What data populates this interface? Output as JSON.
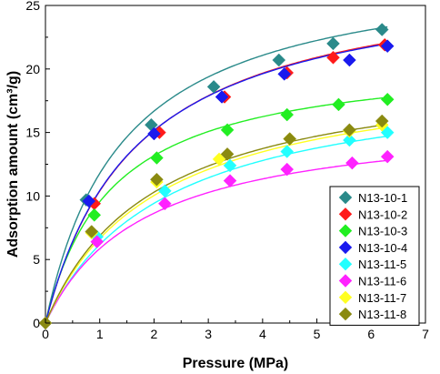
{
  "chart_data": {
    "type": "scatter",
    "xlabel": "Pressure (MPa)",
    "ylabel": "Adsorption amount (cm³/g)",
    "xlim": [
      0,
      7
    ],
    "ylim": [
      0,
      25
    ],
    "xticks": [
      0,
      1,
      2,
      3,
      4,
      5,
      6,
      7
    ],
    "yticks": [
      0,
      5,
      10,
      15,
      20,
      25
    ],
    "grid": false,
    "legend_position": "bottom-right",
    "fit_curves": true,
    "series": [
      {
        "name": "N13-10-1",
        "color": "#2a8a8a",
        "marker": "diamond",
        "x": [
          0,
          0.75,
          1.95,
          3.1,
          4.3,
          5.3,
          6.2
        ],
        "y": [
          0,
          9.7,
          15.6,
          18.6,
          20.7,
          22.0,
          23.1
        ],
        "fit": {
          "vmax": 28.6,
          "b": 0.7
        }
      },
      {
        "name": "N13-10-2",
        "color": "#ff1a1a",
        "marker": "diamond",
        "x": [
          0,
          0.9,
          2.1,
          3.3,
          4.45,
          5.3,
          6.25
        ],
        "y": [
          0,
          9.4,
          15.0,
          17.8,
          19.7,
          20.9,
          21.9
        ],
        "fit": {
          "vmax": 28.0,
          "b": 0.59
        }
      },
      {
        "name": "N13-10-3",
        "color": "#22ee22",
        "marker": "diamond",
        "x": [
          0,
          0.9,
          2.05,
          3.35,
          4.45,
          5.4,
          6.3
        ],
        "y": [
          0,
          8.5,
          13.0,
          15.2,
          16.4,
          17.2,
          17.6
        ],
        "fit": {
          "vmax": 21.2,
          "b": 0.82
        }
      },
      {
        "name": "N13-10-4",
        "color": "#1a1aee",
        "marker": "diamond",
        "x": [
          0,
          0.8,
          2.0,
          3.25,
          4.4,
          5.6,
          6.3
        ],
        "y": [
          0,
          9.6,
          14.9,
          17.8,
          19.6,
          20.7,
          21.8
        ],
        "fit": {
          "vmax": 27.8,
          "b": 0.6
        }
      },
      {
        "name": "N13-11-5",
        "color": "#22ffff",
        "marker": "diamond",
        "x": [
          0,
          0.95,
          2.2,
          3.4,
          4.45,
          5.6,
          6.3
        ],
        "y": [
          0,
          6.8,
          10.4,
          12.4,
          13.5,
          14.4,
          15.0
        ],
        "fit": {
          "vmax": 19.9,
          "b": 0.45
        }
      },
      {
        "name": "N13-11-6",
        "color": "#ff22ff",
        "marker": "diamond",
        "x": [
          0,
          0.95,
          2.2,
          3.4,
          4.45,
          5.65,
          6.3
        ],
        "y": [
          0,
          6.4,
          9.4,
          11.2,
          12.1,
          12.6,
          13.1
        ],
        "fit": {
          "vmax": 16.5,
          "b": 0.55
        }
      },
      {
        "name": "N13-11-7",
        "color": "#ffff22",
        "marker": "diamond",
        "x": [
          0,
          0.85,
          2.05,
          3.2,
          4.5,
          5.6,
          6.2
        ],
        "y": [
          0,
          7.1,
          11.1,
          12.9,
          14.5,
          15.1,
          15.6
        ],
        "fit": {
          "vmax": 20.5,
          "b": 0.48
        }
      },
      {
        "name": "N13-11-8",
        "color": "#8a8a10",
        "marker": "diamond",
        "x": [
          0,
          0.85,
          2.05,
          3.35,
          4.5,
          5.6,
          6.2
        ],
        "y": [
          0,
          7.2,
          11.3,
          13.3,
          14.5,
          15.2,
          15.9
        ],
        "fit": {
          "vmax": 20.6,
          "b": 0.5
        }
      }
    ]
  }
}
